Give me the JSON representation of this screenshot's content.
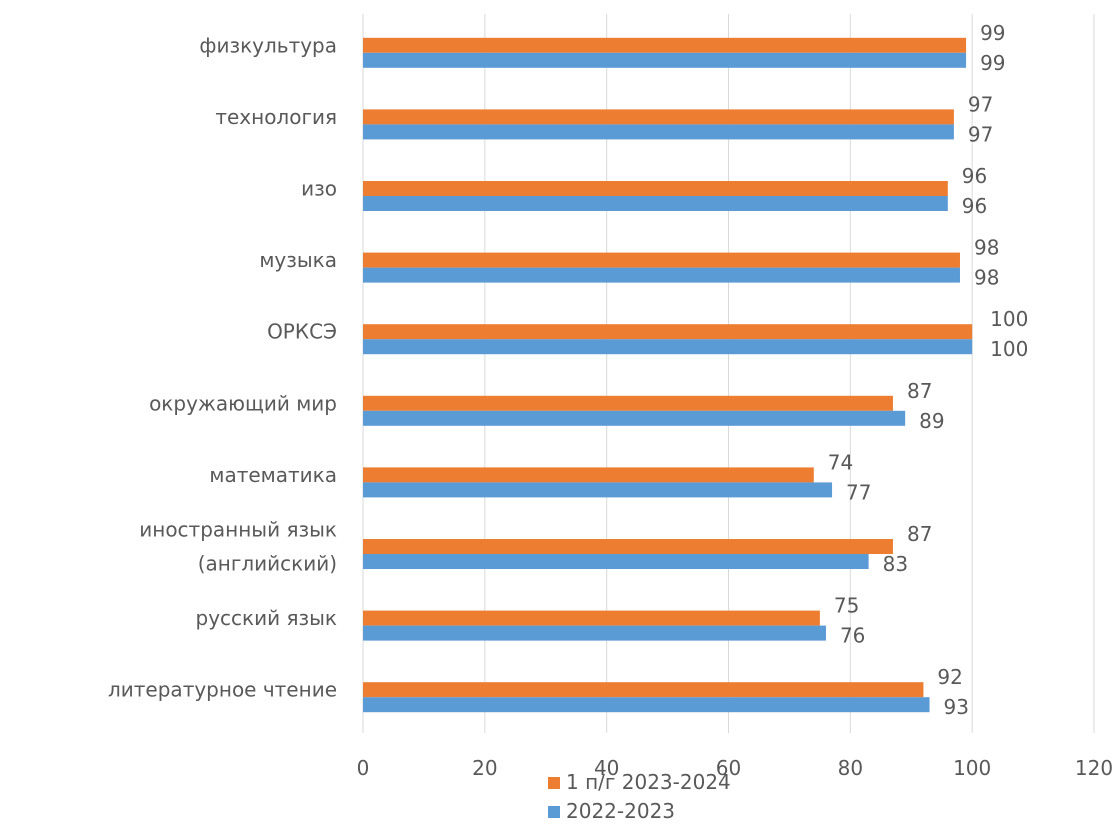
{
  "chart_data": {
    "type": "bar",
    "orientation": "horizontal",
    "categories": [
      [
        "литературное чтение"
      ],
      [
        "русский язык"
      ],
      [
        "иностранный язык",
        "(английский)"
      ],
      [
        "математика"
      ],
      [
        "окружающий мир"
      ],
      [
        "ОРКСЭ"
      ],
      [
        "музыка"
      ],
      [
        "изо"
      ],
      [
        "технология"
      ],
      [
        "физкультура"
      ]
    ],
    "series": [
      {
        "name": "1 п/г 2023-2024",
        "color": "#ED7D31",
        "values": [
          92,
          75,
          87,
          74,
          87,
          100,
          98,
          96,
          97,
          99
        ]
      },
      {
        "name": "2022-2023",
        "color": "#5B9BD5",
        "values": [
          93,
          76,
          83,
          77,
          89,
          100,
          98,
          96,
          97,
          99
        ]
      }
    ],
    "xlim": [
      0,
      120
    ],
    "xticks": [
      0,
      20,
      40,
      60,
      80,
      100,
      120
    ],
    "grid": true,
    "legend": "bottom",
    "gridColor": "#D9D9D9",
    "textColor": "#595959"
  }
}
